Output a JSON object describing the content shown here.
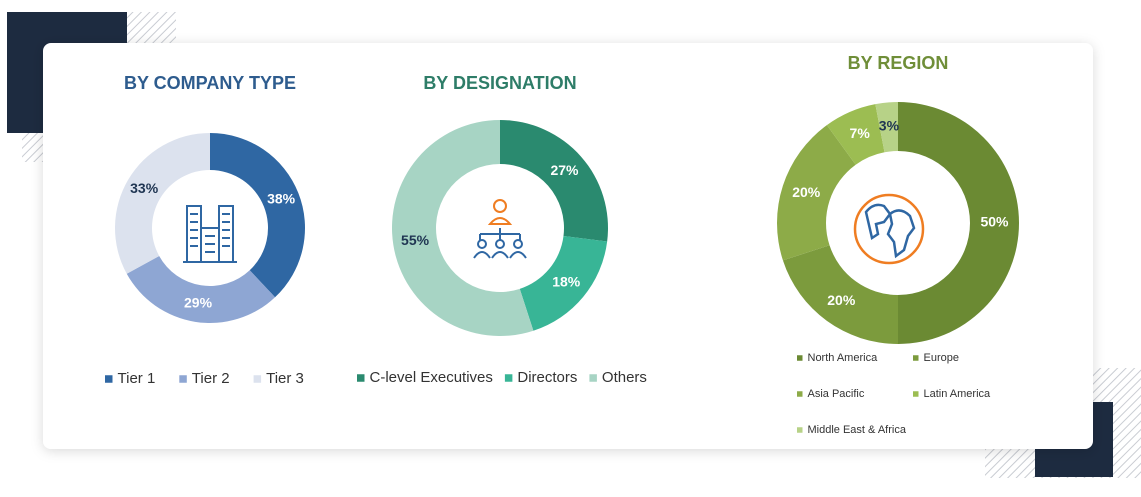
{
  "chart_data": [
    {
      "type": "donut",
      "title": "BY COMPANY TYPE",
      "title_color": "#2e5c8e",
      "categories": [
        "Tier 1",
        "Tier 2",
        "Tier 3"
      ],
      "values": [
        38,
        29,
        33
      ],
      "value_labels": [
        "38%",
        "29%",
        "33%"
      ],
      "colors": [
        "#2f67a3",
        "#8ea6d3",
        "#dce2ee"
      ]
    },
    {
      "type": "donut",
      "title": "BY DESIGNATION",
      "title_color": "#2e7d68",
      "categories": [
        "C-level Executives",
        "Directors",
        "Others"
      ],
      "values": [
        27,
        18,
        55
      ],
      "value_labels": [
        "27%",
        "18%",
        "55%"
      ],
      "colors": [
        "#2a8a6f",
        "#38b596",
        "#a7d4c4"
      ]
    },
    {
      "type": "donut",
      "title": "BY REGION",
      "title_color": "#6f8e38",
      "categories": [
        "North America",
        "Europe",
        "Asia Pacific",
        "Latin America",
        "Middle East & Africa"
      ],
      "values": [
        50,
        20,
        20,
        7,
        3
      ],
      "value_labels": [
        "50%",
        "20%",
        "20%",
        "7%",
        "3%"
      ],
      "colors": [
        "#6b8a33",
        "#7c9b3d",
        "#8dab48",
        "#9cbd52",
        "#b7d287"
      ]
    }
  ]
}
